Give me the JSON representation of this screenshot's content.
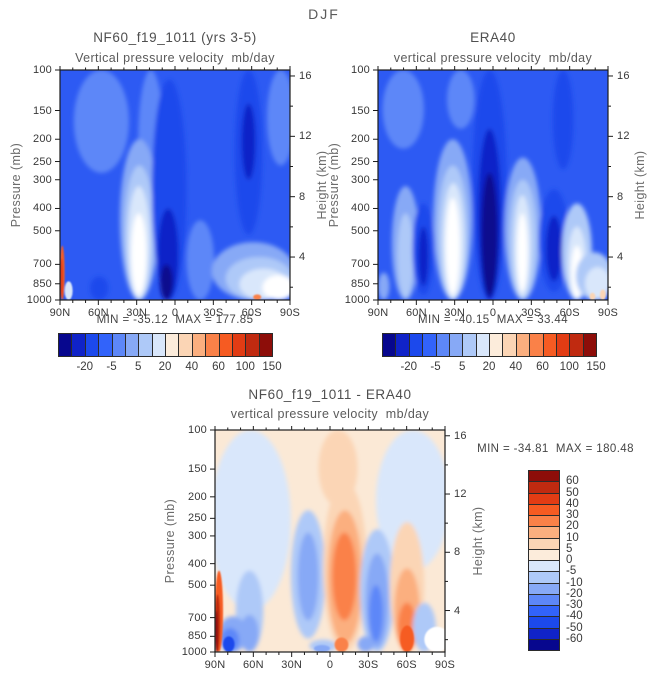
{
  "figure": {
    "title": "DJF"
  },
  "chart_data": {
    "type": "heatmap",
    "x_axis": {
      "ticks": [
        "90N",
        "60N",
        "30N",
        "0",
        "30S",
        "60S",
        "90S"
      ]
    },
    "y_axis": {
      "label": "Pressure (mb)",
      "scale": "log",
      "ticks": [
        100,
        150,
        200,
        250,
        300,
        400,
        500,
        700,
        850,
        1000
      ]
    },
    "y2_axis": {
      "label": "Height (km)",
      "ticks": [
        16,
        12,
        8,
        4
      ],
      "minor_ticks": [
        14,
        10,
        6,
        2
      ]
    },
    "palette": [
      "#07078e",
      "#1023c8",
      "#1c49ec",
      "#3263fa",
      "#5d87f8",
      "#87a9f6",
      "#aec9f8",
      "#d9e7fb",
      "#fcecdb",
      "#fbd5b5",
      "#fbaf7f",
      "#fa8148",
      "#f65b22",
      "#e23c14",
      "#c02a10",
      "#8d0d09"
    ],
    "colorbar_h_labels": [
      "-20",
      "-5",
      "5",
      "20",
      "40",
      "60",
      "100",
      "150"
    ],
    "colorbar_v_labels": [
      "60",
      "50",
      "40",
      "30",
      "20",
      "10",
      "5",
      "0",
      "-5",
      "-10",
      "-20",
      "-30",
      "-40",
      "-50",
      "-60"
    ],
    "panels": [
      {
        "id": "A",
        "title": "NF60_f19_1011 (yrs 3-5)",
        "subtitle": "Vertical pressure velocity  mb/day",
        "stats": "MIN = -35.12  MAX = 177.85",
        "base_color": "#2d5af3",
        "features": [
          [
            0.06,
            0.3,
            100,
            280,
            4
          ],
          [
            0.34,
            0.45,
            100,
            420,
            4
          ],
          [
            0.9,
            1.02,
            100,
            260,
            4
          ],
          [
            0.26,
            0.43,
            200,
            1000,
            5
          ],
          [
            0.28,
            0.41,
            260,
            1000,
            6
          ],
          [
            0.295,
            0.39,
            320,
            1000,
            7
          ],
          [
            0.31,
            0.375,
            420,
            950,
            "#ffffff"
          ],
          [
            0.4,
            0.55,
            110,
            1000,
            2
          ],
          [
            0.425,
            0.515,
            400,
            1000,
            1
          ],
          [
            0.435,
            0.49,
            700,
            1000,
            0
          ],
          [
            0.76,
            0.88,
            100,
            520,
            2
          ],
          [
            0.79,
            0.85,
            140,
            300,
            1
          ],
          [
            0.55,
            0.67,
            450,
            1000,
            4
          ],
          [
            0.66,
            1.02,
            560,
            1000,
            5
          ],
          [
            0.72,
            1.01,
            650,
            1000,
            6
          ],
          [
            0.78,
            0.99,
            730,
            1000,
            7
          ],
          [
            0.88,
            1.02,
            780,
            1000,
            "#ffffff"
          ],
          [
            0.13,
            0.21,
            790,
            1000,
            2
          ],
          [
            0.84,
            0.875,
            945,
            1000,
            11,
            1
          ],
          [
            0.0,
            0.02,
            580,
            1000,
            12,
            1
          ],
          [
            0.0,
            0.013,
            660,
            980,
            13,
            1
          ],
          [
            0.02,
            0.055,
            830,
            1000,
            7,
            1
          ]
        ]
      },
      {
        "id": "B",
        "title": "ERA40",
        "subtitle": "vertical pressure velocity  mb/day",
        "stats": "MIN = -40.15  MAX = 33.44",
        "base_color": "#2d5af3",
        "features": [
          [
            0.02,
            0.2,
            100,
            220,
            4
          ],
          [
            0.3,
            0.42,
            100,
            180,
            4
          ],
          [
            0.06,
            0.18,
            320,
            1000,
            5
          ],
          [
            0.085,
            0.155,
            420,
            980,
            6
          ],
          [
            0.24,
            0.41,
            200,
            1000,
            5
          ],
          [
            0.26,
            0.39,
            260,
            1000,
            6
          ],
          [
            0.28,
            0.375,
            310,
            1000,
            7
          ],
          [
            0.295,
            0.355,
            360,
            950,
            "#ffffff"
          ],
          [
            0.15,
            0.245,
            380,
            950,
            2
          ],
          [
            0.175,
            0.22,
            480,
            870,
            1
          ],
          [
            0.41,
            0.56,
            100,
            1000,
            2
          ],
          [
            0.435,
            0.535,
            180,
            1000,
            1
          ],
          [
            0.45,
            0.52,
            280,
            970,
            0
          ],
          [
            0.55,
            0.71,
            240,
            1000,
            5
          ],
          [
            0.57,
            0.69,
            300,
            1000,
            6
          ],
          [
            0.59,
            0.665,
            350,
            970,
            7
          ],
          [
            0.605,
            0.65,
            420,
            920,
            "#ffffff"
          ],
          [
            0.7,
            0.83,
            330,
            920,
            2
          ],
          [
            0.73,
            0.8,
            430,
            830,
            1
          ],
          [
            0.76,
            0.85,
            100,
            270,
            2
          ],
          [
            0.8,
            0.93,
            380,
            1000,
            6
          ],
          [
            0.825,
            0.905,
            480,
            1000,
            7
          ],
          [
            0.84,
            0.89,
            580,
            980,
            "#ffffff"
          ],
          [
            0.86,
            1.02,
            620,
            1000,
            6
          ],
          [
            0.9,
            1.01,
            720,
            1000,
            7
          ],
          [
            0.0,
            0.05,
            760,
            1000,
            5
          ],
          [
            0.92,
            0.945,
            930,
            1000,
            9,
            1
          ],
          [
            0.965,
            0.99,
            900,
            1000,
            9,
            1
          ]
        ]
      },
      {
        "id": "C",
        "title": "NF60_f19_1011 - ERA40",
        "subtitle": "vertical pressure velocity  mb/day",
        "stats": "MIN = -34.81  MAX = 180.48",
        "base_color": "#fbe9d6",
        "features": [
          [
            -0.02,
            0.33,
            100,
            650,
            7
          ],
          [
            0.7,
            1.02,
            100,
            430,
            7
          ],
          [
            0.45,
            0.62,
            100,
            220,
            9
          ],
          [
            0.09,
            0.21,
            430,
            1000,
            6
          ],
          [
            0.11,
            0.19,
            680,
            1000,
            5
          ],
          [
            0.33,
            0.48,
            230,
            870,
            6
          ],
          [
            0.36,
            0.45,
            290,
            720,
            5
          ],
          [
            0.47,
            0.66,
            170,
            1000,
            9
          ],
          [
            0.49,
            0.64,
            230,
            920,
            10
          ],
          [
            0.51,
            0.615,
            290,
            720,
            11
          ],
          [
            0.63,
            0.78,
            280,
            1000,
            6
          ],
          [
            0.655,
            0.755,
            360,
            960,
            5
          ],
          [
            0.67,
            0.73,
            500,
            900,
            4
          ],
          [
            0.76,
            0.91,
            260,
            1000,
            9
          ],
          [
            0.78,
            0.89,
            420,
            1000,
            10
          ],
          [
            0.795,
            0.875,
            600,
            1000,
            11
          ],
          [
            0.86,
            0.96,
            600,
            1000,
            6
          ],
          [
            0.015,
            0.14,
            690,
            1000,
            5
          ],
          [
            0.025,
            0.105,
            780,
            1000,
            4
          ],
          [
            0.41,
            0.53,
            880,
            1000,
            6
          ],
          [
            0.62,
            0.69,
            850,
            1000,
            5
          ],
          [
            0.52,
            0.58,
            860,
            1000,
            11,
            1
          ],
          [
            0.805,
            0.865,
            760,
            1000,
            12,
            1
          ],
          [
            0.035,
            0.085,
            850,
            1000,
            2,
            1
          ],
          [
            0.43,
            0.5,
            930,
            1000,
            5,
            1
          ],
          [
            0.0,
            0.035,
            430,
            1000,
            12,
            1
          ],
          [
            0.0,
            0.022,
            550,
            1000,
            14,
            1
          ],
          [
            0.0,
            0.013,
            650,
            1000,
            15,
            1
          ],
          [
            0.91,
            1.02,
            770,
            1000,
            "#ffffff",
            1
          ]
        ]
      }
    ]
  }
}
